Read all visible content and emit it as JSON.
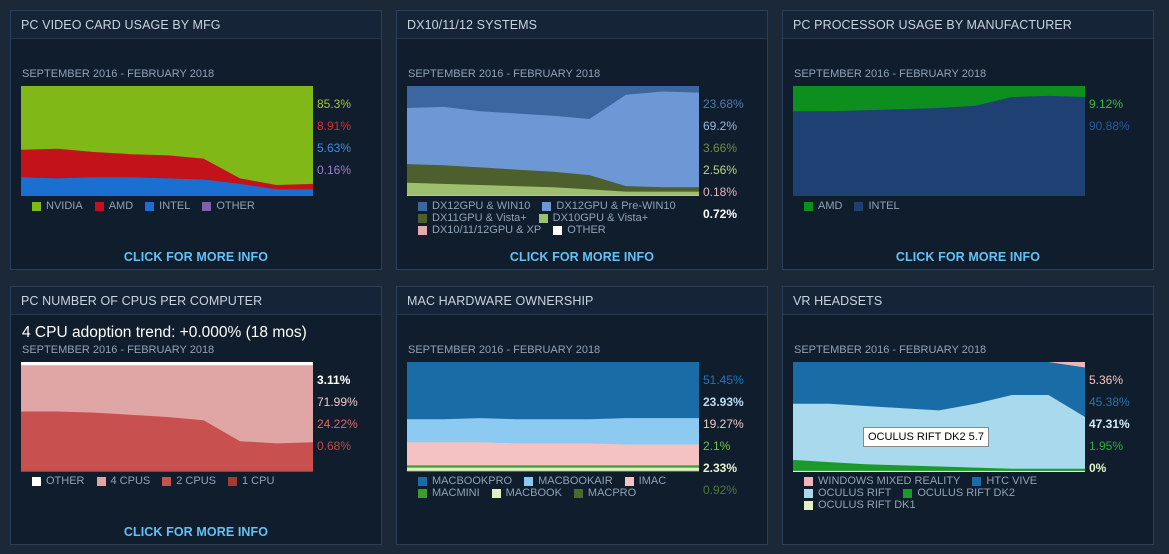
{
  "click_label": "CLICK FOR MORE INFO",
  "panels": [
    {
      "title": "PC VIDEO CARD USAGE BY MFG",
      "range": "SEPTEMBER 2016 - FEBRUARY 2018",
      "percents": [
        {
          "text": "85.3%",
          "color": "#a4c639"
        },
        {
          "text": "8.91%",
          "color": "#e02a2a"
        },
        {
          "text": "5.63%",
          "color": "#3b8ee0"
        },
        {
          "text": "0.16%",
          "color": "#9b7fc6"
        }
      ],
      "legend": [
        [
          {
            "label": "NVIDIA",
            "color": "#7fb817"
          },
          {
            "label": "AMD",
            "color": "#c4121a"
          },
          {
            "label": "INTEL",
            "color": "#1a6fd0"
          },
          {
            "label": "OTHER",
            "color": "#7e5fb0"
          }
        ]
      ]
    },
    {
      "title": "DX10/11/12 SYSTEMS",
      "range": "SEPTEMBER 2016 - FEBRUARY 2018",
      "percents": [
        {
          "text": "23.68%",
          "color": "#4d7bb8"
        },
        {
          "text": "69.2%",
          "color": "#9ab8e2"
        },
        {
          "text": "3.66%",
          "color": "#6d8a4a"
        },
        {
          "text": "2.56%",
          "color": "#b7d48a"
        },
        {
          "text": "0.18%",
          "color": "#e8b4b8"
        },
        {
          "text": "0.72%",
          "color": "#ffffff"
        }
      ],
      "legend": [
        [
          {
            "label": "DX12GPU & WIN10",
            "color": "#3c66a0"
          },
          {
            "label": "DX12GPU & Pre-WIN10",
            "color": "#6e97d6"
          }
        ],
        [
          {
            "label": "DX11GPU & Vista+",
            "color": "#4c5f2c"
          },
          {
            "label": "DX10GPU & Vista+",
            "color": "#9dbf6e"
          }
        ],
        [
          {
            "label": "DX10/11/12GPU & XP",
            "color": "#e5a9ae"
          },
          {
            "label": "OTHER",
            "color": "#ffffff"
          }
        ]
      ]
    },
    {
      "title": "PC PROCESSOR USAGE BY MANUFACTURER",
      "range": "SEPTEMBER 2016 - FEBRUARY 2018",
      "percents": [
        {
          "text": "9.12%",
          "color": "#3dbb3d"
        },
        {
          "text": "90.88%",
          "color": "#2a5aa0"
        }
      ],
      "legend": [
        [
          {
            "label": "AMD",
            "color": "#0c8f1e"
          },
          {
            "label": "INTEL",
            "color": "#1e4073"
          }
        ]
      ]
    },
    {
      "title": "PC NUMBER OF CPUS PER COMPUTER",
      "trend": "4 CPU adoption trend: +0.000% (18 mos)",
      "range": "SEPTEMBER 2016 - FEBRUARY 2018",
      "percents": [
        {
          "text": "3.11%",
          "color": "#ffffff"
        },
        {
          "text": "71.99%",
          "color": "#f0c8c8"
        },
        {
          "text": "24.22%",
          "color": "#e06666"
        },
        {
          "text": "0.68%",
          "color": "#c04848"
        }
      ],
      "legend": [
        [
          {
            "label": "OTHER",
            "color": "#ffffff"
          },
          {
            "label": "4 CPUS",
            "color": "#e0a5a5"
          },
          {
            "label": "2 CPUS",
            "color": "#c8504e"
          },
          {
            "label": "1 CPU",
            "color": "#a83836"
          }
        ]
      ]
    },
    {
      "title": "MAC HARDWARE OWNERSHIP",
      "range": "SEPTEMBER 2016 - FEBRUARY 2018",
      "percents": [
        {
          "text": "51.45%",
          "color": "#1f78b4"
        },
        {
          "text": "23.93%",
          "color": "#b8dcf5"
        },
        {
          "text": "19.27%",
          "color": "#f3c6c6"
        },
        {
          "text": "2.1%",
          "color": "#6cc04a"
        },
        {
          "text": "2.33%",
          "color": "#e6f3d0"
        },
        {
          "text": "0.92%",
          "color": "#4f7a3b"
        }
      ],
      "legend": [
        [
          {
            "label": "MACBOOKPRO",
            "color": "#1a6ca6"
          },
          {
            "label": "MACBOOKAIR",
            "color": "#8ccaf2"
          },
          {
            "label": "IMAC",
            "color": "#f4c2c2"
          }
        ],
        [
          {
            "label": "MACMINI",
            "color": "#3f9b2f"
          },
          {
            "label": "MACBOOK",
            "color": "#dcefc5"
          },
          {
            "label": "MACPRO",
            "color": "#4a6a2e"
          }
        ]
      ]
    },
    {
      "title": "VR HEADSETS",
      "range": "SEPTEMBER 2016 - FEBRUARY 2018",
      "percents": [
        {
          "text": "5.36%",
          "color": "#f3c6c6"
        },
        {
          "text": "45.38%",
          "color": "#1f78b4"
        },
        {
          "text": "47.31%",
          "color": "#d6ecf7"
        },
        {
          "text": "1.95%",
          "color": "#2fae3a"
        },
        {
          "text": "0%",
          "color": "#e6f3c8"
        }
      ],
      "legend": [
        [
          {
            "label": "WINDOWS MIXED REALITY",
            "color": "#f0b5b8"
          },
          {
            "label": "HTC VIVE",
            "color": "#1a6ca6"
          }
        ],
        [
          {
            "label": "OCULUS RIFT",
            "color": "#a9d9ec"
          },
          {
            "label": "OCULUS RIFT DK2",
            "color": "#1a9a2a"
          }
        ],
        [
          {
            "label": "OCULUS RIFT DK1",
            "color": "#e2f0c8"
          }
        ]
      ],
      "tooltip": "OCULUS RIFT DK2 5.7"
    }
  ],
  "charts": [
    {
      "layers": [
        {
          "name": "INTEL",
          "color": "#1a6fd0",
          "top": [
            17,
            16,
            17,
            17,
            16,
            15,
            11,
            6,
            6
          ]
        },
        {
          "name": "AMD",
          "color": "#c4121a",
          "top": [
            42,
            43,
            40,
            38,
            37,
            34,
            16,
            10,
            11
          ]
        },
        {
          "name": "NVIDIA",
          "color": "#7fb817",
          "top": [
            100,
            100,
            100,
            100,
            100,
            100,
            100,
            100,
            100
          ]
        }
      ]
    },
    {
      "layers": [
        {
          "name": "DX10/11/12GPU & XP",
          "color": "#e5a9ae",
          "top": [
            1,
            1,
            1,
            1,
            1,
            1,
            1,
            1,
            1
          ]
        },
        {
          "name": "DX10GPU & Vista+",
          "color": "#9dbf6e",
          "top": [
            12,
            11,
            10,
            9,
            8,
            6,
            4,
            4,
            4
          ]
        },
        {
          "name": "DX11GPU & Vista+",
          "color": "#4c5f2c",
          "top": [
            29,
            28,
            26,
            24,
            22,
            19,
            9,
            8,
            8
          ]
        },
        {
          "name": "DX12GPU & Pre-WIN10",
          "color": "#6e97d6",
          "top": [
            80,
            81,
            77,
            75,
            73,
            70,
            92,
            95,
            94
          ]
        },
        {
          "name": "DX12GPU & WIN10",
          "color": "#3c66a0",
          "top": [
            100,
            100,
            100,
            100,
            100,
            100,
            100,
            100,
            100
          ]
        }
      ]
    },
    {
      "layers": [
        {
          "name": "INTEL",
          "color": "#1e4073",
          "top": [
            77,
            77,
            78,
            79,
            80,
            82,
            90,
            91,
            90
          ]
        },
        {
          "name": "AMD",
          "color": "#0c8f1e",
          "top": [
            100,
            100,
            100,
            100,
            100,
            100,
            100,
            100,
            100
          ]
        }
      ]
    },
    {
      "layers": [
        {
          "name": "1 CPU",
          "color": "#a83836",
          "top": [
            1,
            1,
            1,
            1,
            1,
            1,
            1,
            1,
            1
          ]
        },
        {
          "name": "2 CPUS",
          "color": "#c8504e",
          "top": [
            55,
            55,
            54,
            52,
            50,
            47,
            28,
            26,
            27
          ]
        },
        {
          "name": "4 CPUS",
          "color": "#e0a5a5",
          "top": [
            97,
            97,
            97,
            97,
            97,
            97,
            97,
            97,
            97
          ]
        },
        {
          "name": "OTHER",
          "color": "#ffffff",
          "top": [
            100,
            100,
            100,
            100,
            100,
            100,
            100,
            100,
            100
          ]
        }
      ]
    },
    {
      "layers": [
        {
          "name": "MACPRO",
          "color": "#4a6a2e",
          "top": [
            1,
            1,
            1,
            1,
            1,
            1,
            1,
            1,
            1
          ]
        },
        {
          "name": "MACBOOK",
          "color": "#dcefc5",
          "top": [
            4,
            4,
            4,
            4,
            4,
            4,
            4,
            4,
            4
          ]
        },
        {
          "name": "MACMINI",
          "color": "#3f9b2f",
          "top": [
            6,
            6,
            6,
            6,
            6,
            6,
            6,
            6,
            6
          ]
        },
        {
          "name": "IMAC",
          "color": "#f4c2c2",
          "top": [
            27,
            27,
            27,
            26,
            26,
            26,
            25,
            25,
            25
          ]
        },
        {
          "name": "MACBOOKAIR",
          "color": "#8ccaf2",
          "top": [
            48,
            48,
            49,
            48,
            48,
            48,
            49,
            49,
            49
          ]
        },
        {
          "name": "MACBOOKPRO",
          "color": "#1a6ca6",
          "top": [
            100,
            100,
            100,
            100,
            100,
            100,
            100,
            100,
            100
          ]
        }
      ]
    },
    {
      "layers": [
        {
          "name": "OCULUS RIFT DK1",
          "color": "#e2f0c8",
          "top": [
            1,
            1,
            1,
            1,
            1,
            1,
            1,
            1,
            1
          ]
        },
        {
          "name": "OCULUS RIFT DK2",
          "color": "#1a9a2a",
          "top": [
            11,
            9,
            7,
            6,
            5,
            4,
            3,
            3,
            3
          ]
        },
        {
          "name": "OCULUS RIFT",
          "color": "#a9d9ec",
          "top": [
            62,
            62,
            60,
            58,
            56,
            62,
            70,
            70,
            50
          ]
        },
        {
          "name": "HTC VIVE",
          "color": "#1a6ca6",
          "top": [
            100,
            100,
            100,
            100,
            100,
            100,
            100,
            100,
            95
          ]
        },
        {
          "name": "WINDOWS MIXED REALITY",
          "color": "#f0b5b8",
          "top": [
            100,
            100,
            100,
            100,
            100,
            100,
            100,
            100,
            100
          ]
        }
      ]
    }
  ]
}
